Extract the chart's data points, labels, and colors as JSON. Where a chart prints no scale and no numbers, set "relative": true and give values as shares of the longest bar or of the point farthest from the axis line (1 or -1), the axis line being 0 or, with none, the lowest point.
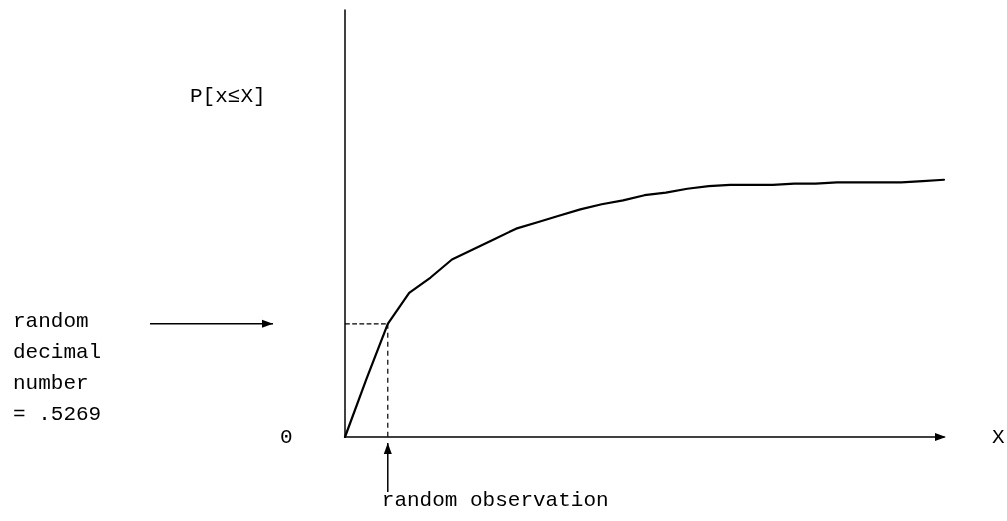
{
  "chart_data": {
    "type": "line",
    "relative": true,
    "xlabel": "X",
    "color": "#000000",
    "marker": "none",
    "line_style": "solid",
    "grid": false,
    "categories": [
      null,
      null,
      null,
      null,
      null,
      null,
      null,
      null,
      null,
      null,
      null,
      null,
      null,
      null,
      null,
      null,
      null,
      null,
      null,
      null,
      null,
      null,
      null,
      null,
      null,
      null,
      null,
      null,
      null
    ],
    "values": [
      0,
      0.225,
      0.44,
      0.56,
      0.62,
      0.69,
      0.73,
      0.77,
      0.81,
      0.835,
      0.86,
      0.885,
      0.905,
      0.92,
      0.94,
      0.95,
      0.965,
      0.975,
      0.98,
      0.98,
      0.98,
      0.985,
      0.985,
      0.99,
      0.99,
      0.99,
      0.99,
      0.995,
      1
    ],
    "series": [
      {
        "type": "line",
        "color": "#000000",
        "line_style": "dashed",
        "values": [
          0.44,
          0.44,
          0.44,
          null,
          null,
          null,
          null,
          null,
          null,
          null,
          null,
          null,
          null,
          null,
          null,
          null,
          null,
          null,
          null,
          null,
          null,
          null,
          null,
          null,
          null,
          null,
          null,
          null,
          null
        ]
      }
    ],
    "annotations": [
      "0",
      "P[x≤X]",
      "random decimal number = .5269",
      "random observation"
    ]
  }
}
